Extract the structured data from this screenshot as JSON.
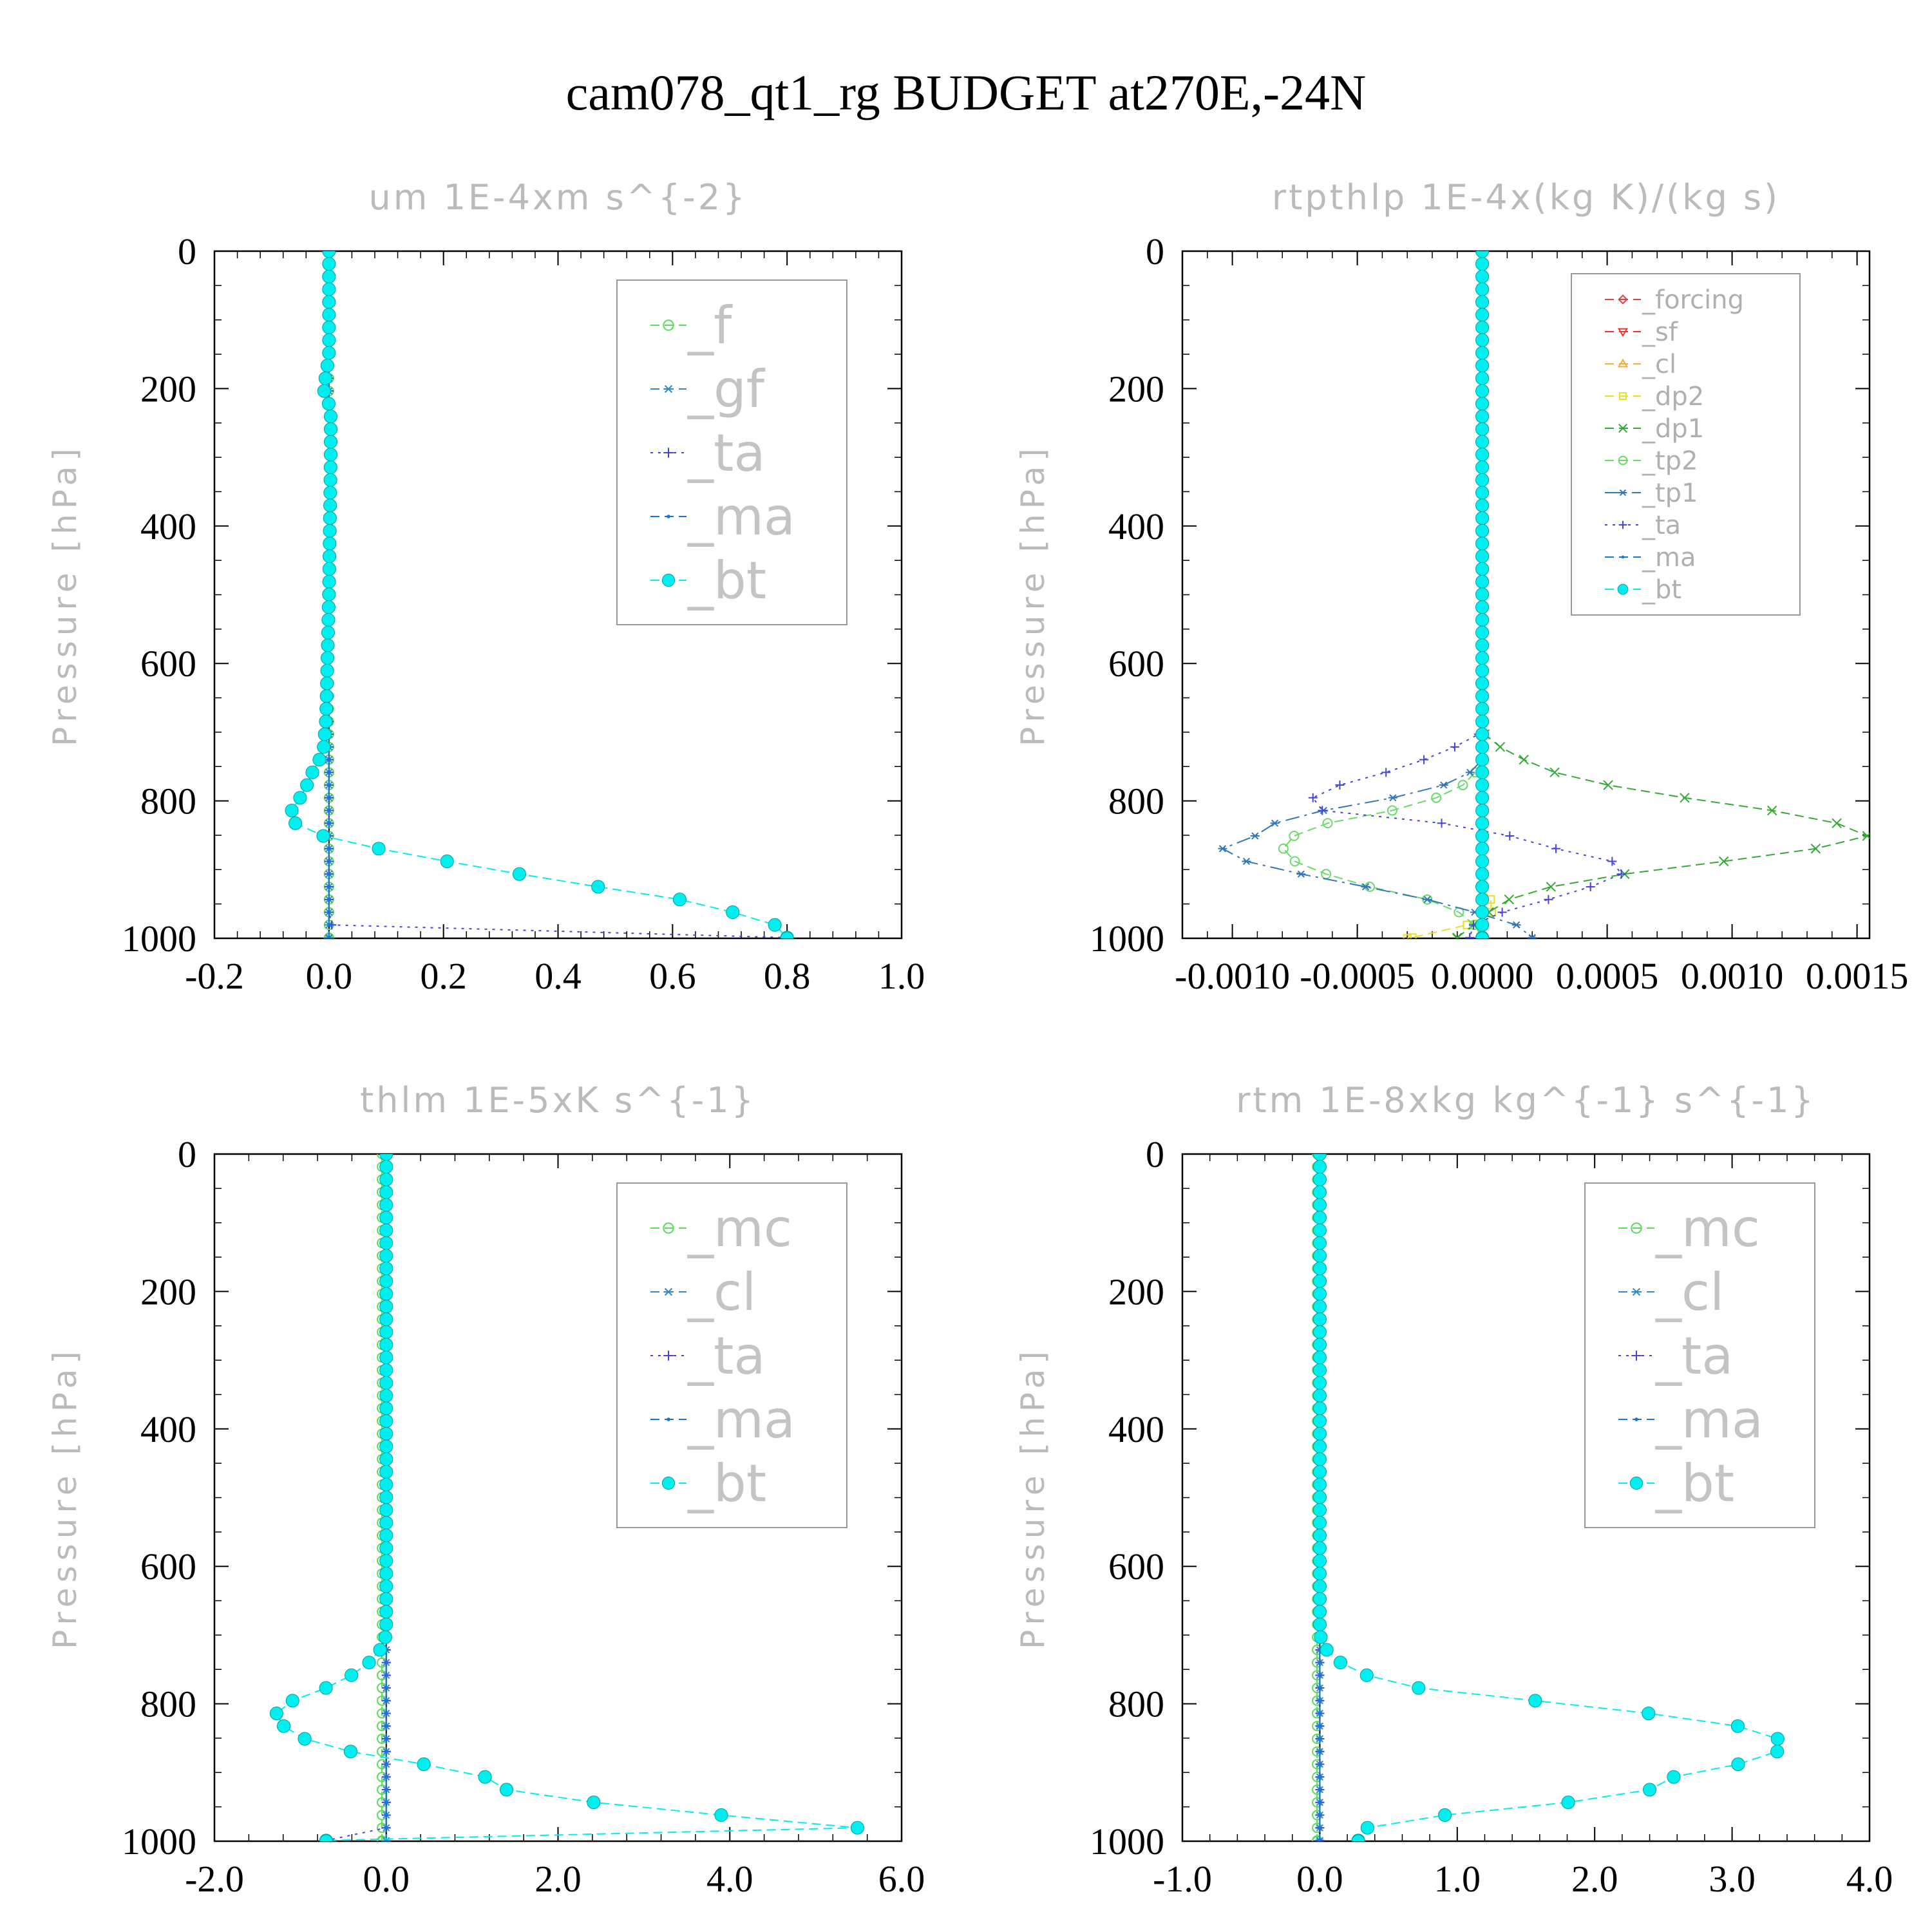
{
  "figure": {
    "title": "cam078_qt1_rg  BUDGET at270E,-24N"
  },
  "chart_data": [
    {
      "type": "line",
      "title": "um   1E-4xm s^{-2}",
      "ylabel": "Pressure [hPa]",
      "xlim": [
        -0.2,
        1.0
      ],
      "ylim": [
        1000,
        0
      ],
      "xticks": [
        "-0.2",
        "0.0",
        "0.2",
        "0.4",
        "0.6",
        "0.8",
        "1.0"
      ],
      "yticks": [
        "0",
        "200",
        "400",
        "600",
        "800",
        "1000"
      ],
      "legend_position": "top-right",
      "legend_size": "large",
      "series": [
        {
          "name": "_f",
          "color": "#55dd55",
          "marker": "circle-open",
          "style": "dashed",
          "profile": {
            "p": [
              0,
              1000
            ],
            "v": [
              0,
              0
            ]
          }
        },
        {
          "name": "_gf",
          "color": "#3388cc",
          "marker": "asterisk",
          "style": "dashed",
          "profile": {
            "p": [
              0,
              1000
            ],
            "v": [
              0,
              0
            ]
          }
        },
        {
          "name": "_ta",
          "color": "#4444dd",
          "marker": "plus",
          "style": "dotted",
          "profile": {
            "p": [
              0,
              980,
              990,
              997,
              1000
            ],
            "v": [
              0,
              0,
              0.1,
              0.8,
              0.8
            ]
          }
        },
        {
          "name": "_ma",
          "color": "#1177dd",
          "marker": "dot",
          "style": "dashed",
          "profile": {
            "p": [
              0,
              1000
            ],
            "v": [
              0,
              0
            ]
          }
        },
        {
          "name": "_bt",
          "color": "#00eeee",
          "marker": "filled-circle",
          "style": "dashed",
          "profile": {
            "p": [
              0,
              150,
              180,
              200,
              230,
              300,
              500,
              680,
              730,
              760,
              790,
              810,
              830,
              850,
              866,
              882,
              898,
              915,
              930,
              943,
              955,
              965,
              975,
              982,
              988,
              995,
              1000
            ],
            "v": [
              0,
              0,
              -0.005,
              -0.01,
              0.003,
              0.003,
              0,
              -0.005,
              -0.01,
              -0.03,
              -0.045,
              -0.065,
              -0.065,
              -0.015,
              0.065,
              0.165,
              0.275,
              0.39,
              0.51,
              0.61,
              0.67,
              0.72,
              0.755,
              0.785,
              0.81,
              0.8,
              0.8
            ]
          }
        }
      ]
    },
    {
      "type": "line",
      "title": "rtpthlp   1E-4x(kg K)/(kg s)",
      "ylabel": "Pressure [hPa]",
      "xlim": [
        -0.0012,
        0.00155
      ],
      "ylim": [
        1000,
        0
      ],
      "xticks": [
        "-0.0010",
        "-0.0005",
        "0.0000",
        "0.0005",
        "0.0010",
        "0.0015"
      ],
      "yticks": [
        "0",
        "200",
        "400",
        "600",
        "800",
        "1000"
      ],
      "legend_position": "top-right",
      "legend_size": "small",
      "series": [
        {
          "name": "_forcing",
          "color": "#dd4444",
          "marker": "diamond",
          "style": "dashed",
          "profile": {
            "p": [
              0,
              1000
            ],
            "v": [
              0,
              0
            ]
          }
        },
        {
          "name": "_sf",
          "color": "#ee3333",
          "marker": "triangle-down",
          "style": "dashed",
          "profile": {
            "p": [
              0,
              1000
            ],
            "v": [
              0,
              0
            ]
          }
        },
        {
          "name": "_cl",
          "color": "#ffaa33",
          "marker": "triangle-up",
          "style": "dashed",
          "profile": {
            "p": [
              0,
              1000
            ],
            "v": [
              0,
              0
            ]
          }
        },
        {
          "name": "_dp2",
          "color": "#eedd22",
          "marker": "square",
          "style": "dashed",
          "profile": {
            "p": [
              0,
              930,
              950,
              970,
              985,
              995,
              1000
            ],
            "v": [
              0,
              0,
              5e-05,
              3e-05,
              -0.0001,
              -0.0002,
              -0.0003
            ]
          }
        },
        {
          "name": "_dp1",
          "color": "#33aa33",
          "marker": "cross",
          "style": "dashed",
          "profile": {
            "p": [
              0,
              700,
              730,
              760,
              785,
              810,
              830,
              850,
              866,
              882,
              900,
              915,
              935,
              955,
              970,
              985,
              995,
              1000
            ],
            "v": [
              0,
              0,
              0.0001,
              0.0003,
              0.0006,
              0.0011,
              0.0014,
              0.00155,
              0.0014,
              0.0011,
              0.0007,
              0.0004,
              0.00015,
              5e-05,
              0,
              -5e-05,
              -0.0001,
              -0.0001
            ]
          }
        },
        {
          "name": "_tp2",
          "color": "#66dd66",
          "marker": "circle-open",
          "style": "dashed",
          "profile": {
            "p": [
              0,
              740,
              760,
              785,
              810,
              830,
              850,
              866,
              882,
              898,
              915,
              930,
              945,
              960,
              975,
              990,
              1000
            ],
            "v": [
              0,
              0,
              -3e-05,
              -0.0001,
              -0.0003,
              -0.0006,
              -0.00075,
              -0.0008,
              -0.00078,
              -0.0007,
              -0.00055,
              -0.0004,
              -0.0002,
              -0.0001,
              -5e-05,
              0,
              0
            ]
          }
        },
        {
          "name": "_tp1",
          "color": "#3377bb",
          "marker": "asterisk",
          "style": "dashdot",
          "profile": {
            "p": [
              0,
              750,
              785,
              825,
              850,
              866,
              882,
              898,
              915,
              930,
              945,
              960,
              975,
              990,
              1000
            ],
            "v": [
              0,
              0,
              -0.0002,
              -0.0008,
              -0.0009,
              -0.00105,
              -0.001,
              -0.00085,
              -0.0006,
              -0.0004,
              -0.0002,
              -5e-05,
              0.0001,
              0.0002,
              0.0002
            ]
          }
        },
        {
          "name": "_ta",
          "color": "#4444dd",
          "marker": "plus",
          "style": "dotted",
          "profile": {
            "p": [
              0,
              700,
              720,
              750,
              780,
              810,
              830,
              850,
              870,
              885,
              900,
              915,
              930,
              950,
              970,
              985,
              1000
            ],
            "v": [
              0,
              0,
              -0.0001,
              -0.0003,
              -0.0006,
              -0.00075,
              -0.0002,
              0.0001,
              0.0003,
              0.0005,
              0.0006,
              0.0005,
              0.0004,
              0.0002,
              0,
              -5e-05,
              -5e-05
            ]
          }
        },
        {
          "name": "_ma",
          "color": "#1177dd",
          "marker": "dot",
          "style": "dashed",
          "profile": {
            "p": [
              0,
              1000
            ],
            "v": [
              0,
              0
            ]
          }
        },
        {
          "name": "_bt",
          "color": "#00eeee",
          "marker": "filled-circle",
          "style": "dashed",
          "profile": {
            "p": [
              0,
              1000
            ],
            "v": [
              0,
              0
            ]
          }
        }
      ]
    },
    {
      "type": "line",
      "title": "thlm   1E-5xK s^{-1}",
      "ylabel": "Pressure [hPa]",
      "xlim": [
        -2.0,
        6.0
      ],
      "ylim": [
        1000,
        0
      ],
      "xticks": [
        "-2.0",
        "0.0",
        "2.0",
        "4.0",
        "6.0"
      ],
      "yticks": [
        "0",
        "200",
        "400",
        "600",
        "800",
        "1000"
      ],
      "legend_position": "top-right",
      "legend_size": "large",
      "series": [
        {
          "name": "_mc",
          "color": "#55dd55",
          "marker": "circle-open",
          "style": "dashed",
          "profile": {
            "p": [
              0,
              1000
            ],
            "v": [
              -0.05,
              -0.05
            ]
          }
        },
        {
          "name": "_cl",
          "color": "#3388cc",
          "marker": "asterisk",
          "style": "dashed",
          "profile": {
            "p": [
              0,
              1000
            ],
            "v": [
              0,
              0
            ]
          }
        },
        {
          "name": "_ta",
          "color": "#4444dd",
          "marker": "plus",
          "style": "dotted",
          "profile": {
            "p": [
              0,
              985,
              990,
              995,
              1000
            ],
            "v": [
              0,
              0,
              5.3,
              -0.7,
              -0.7
            ]
          }
        },
        {
          "name": "_ma",
          "color": "#1177dd",
          "marker": "dot",
          "style": "dashed",
          "profile": {
            "p": [
              0,
              1000
            ],
            "v": [
              0,
              0
            ]
          }
        },
        {
          "name": "_bt",
          "color": "#00eeee",
          "marker": "filled-circle",
          "style": "dashed",
          "profile": {
            "p": [
              0,
              700,
              730,
              755,
              780,
              805,
              825,
              845,
              865,
              882,
              898,
              915,
              925,
              940,
              950,
              962,
              972,
              980,
              987,
              995,
              1000
            ],
            "v": [
              0,
              0,
              -0.1,
              -0.35,
              -0.75,
              -1.3,
              -1.25,
              -1.1,
              -0.6,
              0.1,
              1.0,
              1.3,
              1.4,
              2.1,
              3.0,
              3.9,
              5.0,
              5.5,
              5.3,
              -0.7,
              -0.7
            ]
          }
        }
      ]
    },
    {
      "type": "line",
      "title": "rtm   1E-8xkg kg^{-1} s^{-1}",
      "ylabel": "Pressure [hPa]",
      "xlim": [
        -1.0,
        4.0
      ],
      "ylim": [
        1000,
        0
      ],
      "xticks": [
        "-1.0",
        "0.0",
        "1.0",
        "2.0",
        "3.0",
        "4.0"
      ],
      "yticks": [
        "0",
        "200",
        "400",
        "600",
        "800",
        "1000"
      ],
      "legend_position": "top-right",
      "legend_size": "large",
      "series": [
        {
          "name": "_mc",
          "color": "#55dd55",
          "marker": "circle-open",
          "style": "dashed",
          "profile": {
            "p": [
              0,
              1000
            ],
            "v": [
              -0.02,
              -0.02
            ]
          }
        },
        {
          "name": "_cl",
          "color": "#3388cc",
          "marker": "asterisk",
          "style": "dashed",
          "profile": {
            "p": [
              0,
              1000
            ],
            "v": [
              0,
              0
            ]
          }
        },
        {
          "name": "_ta",
          "color": "#4444dd",
          "marker": "plus",
          "style": "dotted",
          "profile": {
            "p": [
              0,
              1000
            ],
            "v": [
              0,
              0
            ]
          }
        },
        {
          "name": "_ma",
          "color": "#1177dd",
          "marker": "dot",
          "style": "dashed",
          "profile": {
            "p": [
              0,
              1000
            ],
            "v": [
              0,
              0
            ]
          }
        },
        {
          "name": "_bt",
          "color": "#00eeee",
          "marker": "filled-circle",
          "style": "dashed",
          "profile": {
            "p": [
              0,
              700,
              730,
              755,
              780,
              805,
              830,
              850,
              866,
              882,
              898,
              915,
              925,
              940,
              950,
              960,
              970,
              980,
              987,
              995,
              1000
            ],
            "v": [
              0,
              0,
              0.07,
              0.27,
              0.78,
              2.05,
              3.0,
              3.33,
              3.35,
              3.25,
              2.7,
              2.45,
              2.4,
              2.0,
              1.45,
              1.0,
              0.55,
              0.35,
              0.3,
              0.28,
              0.28
            ]
          }
        }
      ]
    }
  ]
}
